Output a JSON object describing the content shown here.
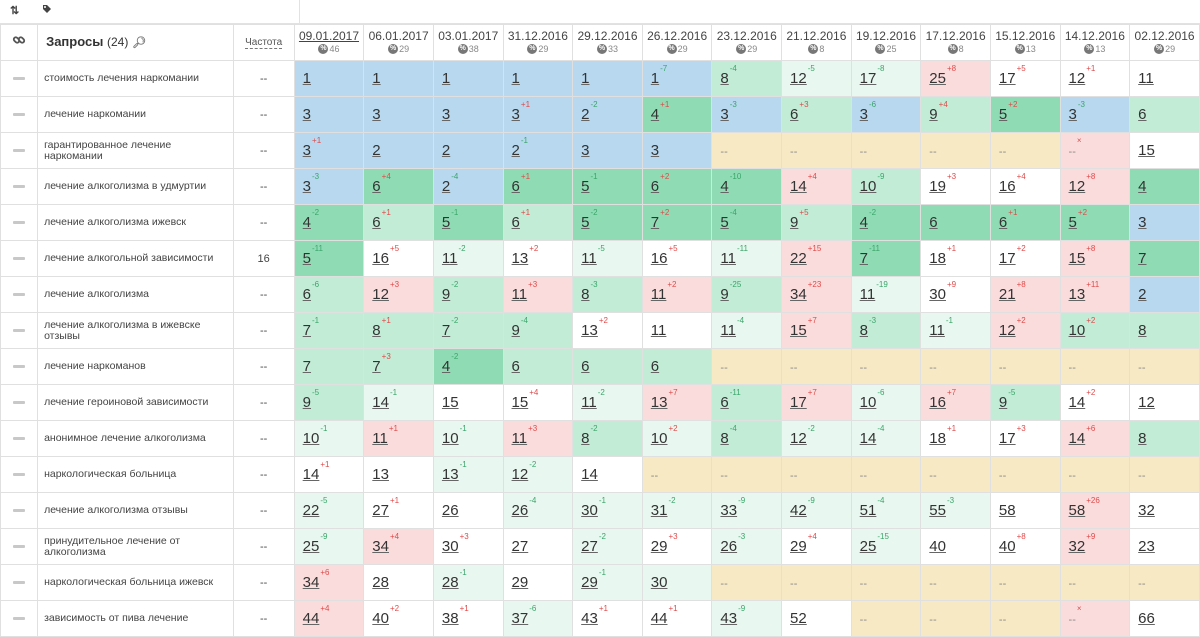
{
  "toolbar": {
    "sort_icon": "sort-icon",
    "tag_icon": "tag-icon"
  },
  "header": {
    "link_icon": "link-icon",
    "queries_label": "Запросы",
    "queries_count": "(24)",
    "freq_label": "Частота"
  },
  "dates": [
    {
      "date": "09.01.2017",
      "sub": "46"
    },
    {
      "date": "06.01.2017",
      "sub": "29"
    },
    {
      "date": "03.01.2017",
      "sub": "38"
    },
    {
      "date": "31.12.2016",
      "sub": "29"
    },
    {
      "date": "29.12.2016",
      "sub": "33"
    },
    {
      "date": "26.12.2016",
      "sub": "29"
    },
    {
      "date": "23.12.2016",
      "sub": "29"
    },
    {
      "date": "21.12.2016",
      "sub": "8"
    },
    {
      "date": "19.12.2016",
      "sub": "25"
    },
    {
      "date": "17.12.2016",
      "sub": "8"
    },
    {
      "date": "15.12.2016",
      "sub": "13"
    },
    {
      "date": "14.12.2016",
      "sub": "13"
    },
    {
      "date": "02.12.2016",
      "sub": "29"
    }
  ],
  "rows": [
    {
      "query": "стоимость лечения наркомании",
      "freq": "--",
      "cells": [
        [
          "1",
          "",
          "",
          "b"
        ],
        [
          "1",
          "",
          "",
          "b"
        ],
        [
          "1",
          "",
          "",
          "b"
        ],
        [
          "1",
          "",
          "",
          "b"
        ],
        [
          "1",
          "",
          "",
          "b"
        ],
        [
          "1",
          "7",
          "g",
          "b"
        ],
        [
          "8",
          "4",
          "g",
          "lg"
        ],
        [
          "12",
          "5",
          "g",
          "vg"
        ],
        [
          "17",
          "8",
          "g",
          "vg"
        ],
        [
          "25",
          "8",
          "r",
          "p"
        ],
        [
          "17",
          "5",
          "r",
          "w"
        ],
        [
          "12",
          "1",
          "r",
          "w"
        ],
        [
          "11",
          "",
          "",
          "w"
        ]
      ]
    },
    {
      "query": "лечение наркомании",
      "freq": "--",
      "cells": [
        [
          "3",
          "",
          "",
          "b"
        ],
        [
          "3",
          "",
          "",
          "b"
        ],
        [
          "3",
          "",
          "",
          "b"
        ],
        [
          "3",
          "1",
          "r",
          "b"
        ],
        [
          "2",
          "2",
          "g",
          "b"
        ],
        [
          "4",
          "1",
          "r",
          "g"
        ],
        [
          "3",
          "3",
          "g",
          "b"
        ],
        [
          "6",
          "3",
          "r",
          "lg"
        ],
        [
          "3",
          "6",
          "g",
          "b"
        ],
        [
          "9",
          "4",
          "r",
          "lg"
        ],
        [
          "5",
          "2",
          "r",
          "g"
        ],
        [
          "3",
          "3",
          "g",
          "b"
        ],
        [
          "6",
          "",
          "",
          "lg"
        ]
      ]
    },
    {
      "query": "гарантированное лечение наркомании",
      "freq": "--",
      "cells": [
        [
          "3",
          "1",
          "r",
          "b"
        ],
        [
          "2",
          "",
          "",
          "b"
        ],
        [
          "2",
          "",
          "",
          "b"
        ],
        [
          "2",
          "1",
          "g",
          "b"
        ],
        [
          "3",
          "",
          "",
          "b"
        ],
        [
          "3",
          "",
          "",
          "b"
        ],
        [
          "--",
          "",
          "",
          "y"
        ],
        [
          "--",
          "",
          "",
          "y"
        ],
        [
          "--",
          "",
          "",
          "y"
        ],
        [
          "--",
          "",
          "",
          "y"
        ],
        [
          "--",
          "",
          "",
          "y"
        ],
        [
          "--",
          "x",
          "r",
          "p"
        ],
        [
          "15",
          "",
          "",
          "w"
        ]
      ]
    },
    {
      "query": "лечение алкоголизма в удмуртии",
      "freq": "--",
      "cells": [
        [
          "3",
          "3",
          "g",
          "b"
        ],
        [
          "6",
          "4",
          "r",
          "g"
        ],
        [
          "2",
          "4",
          "g",
          "b"
        ],
        [
          "6",
          "1",
          "r",
          "g"
        ],
        [
          "5",
          "1",
          "g",
          "g"
        ],
        [
          "6",
          "2",
          "r",
          "g"
        ],
        [
          "4",
          "10",
          "g",
          "g"
        ],
        [
          "14",
          "4",
          "r",
          "p"
        ],
        [
          "10",
          "9",
          "g",
          "lg"
        ],
        [
          "19",
          "3",
          "r",
          "w"
        ],
        [
          "16",
          "4",
          "r",
          "w"
        ],
        [
          "12",
          "8",
          "r",
          "p"
        ],
        [
          "4",
          "",
          "",
          "g"
        ]
      ]
    },
    {
      "query": "лечение алкоголизма ижевск",
      "freq": "--",
      "cells": [
        [
          "4",
          "2",
          "g",
          "g"
        ],
        [
          "6",
          "1",
          "r",
          "lg"
        ],
        [
          "5",
          "1",
          "g",
          "g"
        ],
        [
          "6",
          "1",
          "r",
          "lg"
        ],
        [
          "5",
          "2",
          "g",
          "g"
        ],
        [
          "7",
          "2",
          "r",
          "g"
        ],
        [
          "5",
          "4",
          "g",
          "g"
        ],
        [
          "9",
          "5",
          "r",
          "lg"
        ],
        [
          "4",
          "2",
          "g",
          "g"
        ],
        [
          "6",
          "",
          "",
          "g"
        ],
        [
          "6",
          "1",
          "r",
          "g"
        ],
        [
          "5",
          "2",
          "r",
          "g"
        ],
        [
          "3",
          "",
          "",
          "b"
        ]
      ]
    },
    {
      "query": "лечение алкогольной зависимости",
      "freq": "16",
      "cells": [
        [
          "5",
          "11",
          "g",
          "g"
        ],
        [
          "16",
          "5",
          "r",
          "w"
        ],
        [
          "11",
          "2",
          "g",
          "vg"
        ],
        [
          "13",
          "2",
          "r",
          "w"
        ],
        [
          "11",
          "5",
          "g",
          "vg"
        ],
        [
          "16",
          "5",
          "r",
          "w"
        ],
        [
          "11",
          "11",
          "g",
          "vg"
        ],
        [
          "22",
          "15",
          "r",
          "p"
        ],
        [
          "7",
          "11",
          "g",
          "g"
        ],
        [
          "18",
          "1",
          "r",
          "w"
        ],
        [
          "17",
          "2",
          "r",
          "w"
        ],
        [
          "15",
          "8",
          "r",
          "p"
        ],
        [
          "7",
          "",
          "",
          "g"
        ]
      ]
    },
    {
      "query": "лечение алкоголизма",
      "freq": "--",
      "cells": [
        [
          "6",
          "6",
          "g",
          "lg"
        ],
        [
          "12",
          "3",
          "r",
          "p"
        ],
        [
          "9",
          "2",
          "g",
          "lg"
        ],
        [
          "11",
          "3",
          "r",
          "p"
        ],
        [
          "8",
          "3",
          "g",
          "lg"
        ],
        [
          "11",
          "2",
          "r",
          "p"
        ],
        [
          "9",
          "25",
          "g",
          "lg"
        ],
        [
          "34",
          "23",
          "r",
          "p"
        ],
        [
          "11",
          "19",
          "g",
          "vg"
        ],
        [
          "30",
          "9",
          "r",
          "w"
        ],
        [
          "21",
          "8",
          "r",
          "p"
        ],
        [
          "13",
          "11",
          "r",
          "p"
        ],
        [
          "2",
          "",
          "",
          "b"
        ]
      ]
    },
    {
      "query": "лечение алкоголизма в ижевске отзывы",
      "freq": "--",
      "cells": [
        [
          "7",
          "1",
          "g",
          "lg"
        ],
        [
          "8",
          "1",
          "r",
          "lg"
        ],
        [
          "7",
          "2",
          "g",
          "lg"
        ],
        [
          "9",
          "4",
          "g",
          "lg"
        ],
        [
          "13",
          "2",
          "r",
          "w"
        ],
        [
          "11",
          "",
          "",
          "w"
        ],
        [
          "11",
          "4",
          "g",
          "vg"
        ],
        [
          "15",
          "7",
          "r",
          "p"
        ],
        [
          "8",
          "3",
          "g",
          "lg"
        ],
        [
          "11",
          "1",
          "g",
          "vg"
        ],
        [
          "12",
          "2",
          "r",
          "p"
        ],
        [
          "10",
          "2",
          "r",
          "lg"
        ],
        [
          "8",
          "",
          "",
          "lg"
        ]
      ]
    },
    {
      "query": "лечение наркоманов",
      "freq": "--",
      "cells": [
        [
          "7",
          "",
          "",
          "lg"
        ],
        [
          "7",
          "3",
          "r",
          "lg"
        ],
        [
          "4",
          "2",
          "g",
          "g"
        ],
        [
          "6",
          "",
          "",
          "lg"
        ],
        [
          "6",
          "",
          "",
          "lg"
        ],
        [
          "6",
          "",
          "",
          "lg"
        ],
        [
          "--",
          "",
          "",
          "y"
        ],
        [
          "--",
          "",
          "",
          "y"
        ],
        [
          "--",
          "",
          "",
          "y"
        ],
        [
          "--",
          "",
          "",
          "y"
        ],
        [
          "--",
          "",
          "",
          "y"
        ],
        [
          "--",
          "",
          "",
          "y"
        ],
        [
          "--",
          "",
          "",
          "y"
        ]
      ]
    },
    {
      "query": "лечение героиновой зависимости",
      "freq": "--",
      "cells": [
        [
          "9",
          "5",
          "g",
          "lg"
        ],
        [
          "14",
          "1",
          "g",
          "vg"
        ],
        [
          "15",
          "",
          "",
          "w"
        ],
        [
          "15",
          "4",
          "r",
          "w"
        ],
        [
          "11",
          "2",
          "g",
          "vg"
        ],
        [
          "13",
          "7",
          "r",
          "p"
        ],
        [
          "6",
          "11",
          "g",
          "lg"
        ],
        [
          "17",
          "7",
          "r",
          "p"
        ],
        [
          "10",
          "6",
          "g",
          "vg"
        ],
        [
          "16",
          "7",
          "r",
          "p"
        ],
        [
          "9",
          "5",
          "g",
          "lg"
        ],
        [
          "14",
          "2",
          "r",
          "w"
        ],
        [
          "12",
          "",
          "",
          "w"
        ]
      ]
    },
    {
      "query": "анонимное лечение алкоголизма",
      "freq": "--",
      "cells": [
        [
          "10",
          "1",
          "g",
          "vg"
        ],
        [
          "11",
          "1",
          "r",
          "p"
        ],
        [
          "10",
          "1",
          "g",
          "vg"
        ],
        [
          "11",
          "3",
          "r",
          "p"
        ],
        [
          "8",
          "2",
          "g",
          "lg"
        ],
        [
          "10",
          "2",
          "r",
          "vg"
        ],
        [
          "8",
          "4",
          "g",
          "lg"
        ],
        [
          "12",
          "2",
          "g",
          "vg"
        ],
        [
          "14",
          "4",
          "g",
          "vg"
        ],
        [
          "18",
          "1",
          "r",
          "w"
        ],
        [
          "17",
          "3",
          "r",
          "w"
        ],
        [
          "14",
          "6",
          "r",
          "p"
        ],
        [
          "8",
          "",
          "",
          "lg"
        ]
      ]
    },
    {
      "query": "наркологическая больница",
      "freq": "--",
      "cells": [
        [
          "14",
          "1",
          "r",
          "w"
        ],
        [
          "13",
          "",
          "",
          "w"
        ],
        [
          "13",
          "1",
          "g",
          "vg"
        ],
        [
          "12",
          "2",
          "g",
          "vg"
        ],
        [
          "14",
          "",
          "",
          "w"
        ],
        [
          "--",
          "",
          "",
          "y"
        ],
        [
          "--",
          "",
          "",
          "y"
        ],
        [
          "--",
          "",
          "",
          "y"
        ],
        [
          "--",
          "",
          "",
          "y"
        ],
        [
          "--",
          "",
          "",
          "y"
        ],
        [
          "--",
          "",
          "",
          "y"
        ],
        [
          "--",
          "",
          "",
          "y"
        ],
        [
          "--",
          "",
          "",
          "y"
        ]
      ]
    },
    {
      "query": "лечение алкоголизма отзывы",
      "freq": "--",
      "cells": [
        [
          "22",
          "5",
          "g",
          "vg"
        ],
        [
          "27",
          "1",
          "r",
          "w"
        ],
        [
          "26",
          "",
          "",
          "w"
        ],
        [
          "26",
          "4",
          "g",
          "vg"
        ],
        [
          "30",
          "1",
          "g",
          "vg"
        ],
        [
          "31",
          "2",
          "g",
          "vg"
        ],
        [
          "33",
          "9",
          "g",
          "vg"
        ],
        [
          "42",
          "9",
          "g",
          "vg"
        ],
        [
          "51",
          "4",
          "g",
          "vg"
        ],
        [
          "55",
          "3",
          "g",
          "vg"
        ],
        [
          "58",
          "",
          "",
          "w"
        ],
        [
          "58",
          "26",
          "r",
          "p"
        ],
        [
          "32",
          "",
          "",
          "w"
        ]
      ]
    },
    {
      "query": "принудительное лечение от алкоголизма",
      "freq": "--",
      "cells": [
        [
          "25",
          "9",
          "g",
          "vg"
        ],
        [
          "34",
          "4",
          "r",
          "p"
        ],
        [
          "30",
          "3",
          "r",
          "w"
        ],
        [
          "27",
          "",
          "",
          "w"
        ],
        [
          "27",
          "2",
          "g",
          "vg"
        ],
        [
          "29",
          "3",
          "r",
          "w"
        ],
        [
          "26",
          "3",
          "g",
          "vg"
        ],
        [
          "29",
          "4",
          "r",
          "w"
        ],
        [
          "25",
          "15",
          "g",
          "vg"
        ],
        [
          "40",
          "",
          "",
          "w"
        ],
        [
          "40",
          "8",
          "r",
          "w"
        ],
        [
          "32",
          "9",
          "r",
          "p"
        ],
        [
          "23",
          "",
          "",
          "w"
        ]
      ]
    },
    {
      "query": "наркологическая больница ижевск",
      "freq": "--",
      "cells": [
        [
          "34",
          "6",
          "r",
          "p"
        ],
        [
          "28",
          "",
          "",
          "w"
        ],
        [
          "28",
          "1",
          "g",
          "vg"
        ],
        [
          "29",
          "",
          "",
          "w"
        ],
        [
          "29",
          "1",
          "g",
          "vg"
        ],
        [
          "30",
          "",
          "",
          "vg"
        ],
        [
          "--",
          "",
          "",
          "y"
        ],
        [
          "--",
          "",
          "",
          "y"
        ],
        [
          "--",
          "",
          "",
          "y"
        ],
        [
          "--",
          "",
          "",
          "y"
        ],
        [
          "--",
          "",
          "",
          "y"
        ],
        [
          "--",
          "",
          "",
          "y"
        ],
        [
          "--",
          "",
          "",
          "y"
        ]
      ]
    },
    {
      "query": "зависимость от пива лечение",
      "freq": "--",
      "cells": [
        [
          "44",
          "4",
          "r",
          "p"
        ],
        [
          "40",
          "2",
          "r",
          "w"
        ],
        [
          "38",
          "1",
          "r",
          "w"
        ],
        [
          "37",
          "6",
          "g",
          "vg"
        ],
        [
          "43",
          "1",
          "r",
          "w"
        ],
        [
          "44",
          "1",
          "r",
          "w"
        ],
        [
          "43",
          "9",
          "g",
          "vg"
        ],
        [
          "52",
          "",
          "",
          "w"
        ],
        [
          "--",
          "",
          "",
          "y"
        ],
        [
          "--",
          "",
          "",
          "y"
        ],
        [
          "--",
          "",
          "",
          "y"
        ],
        [
          "--",
          "x",
          "r",
          "p"
        ],
        [
          "66",
          "",
          "",
          "w"
        ]
      ]
    }
  ]
}
